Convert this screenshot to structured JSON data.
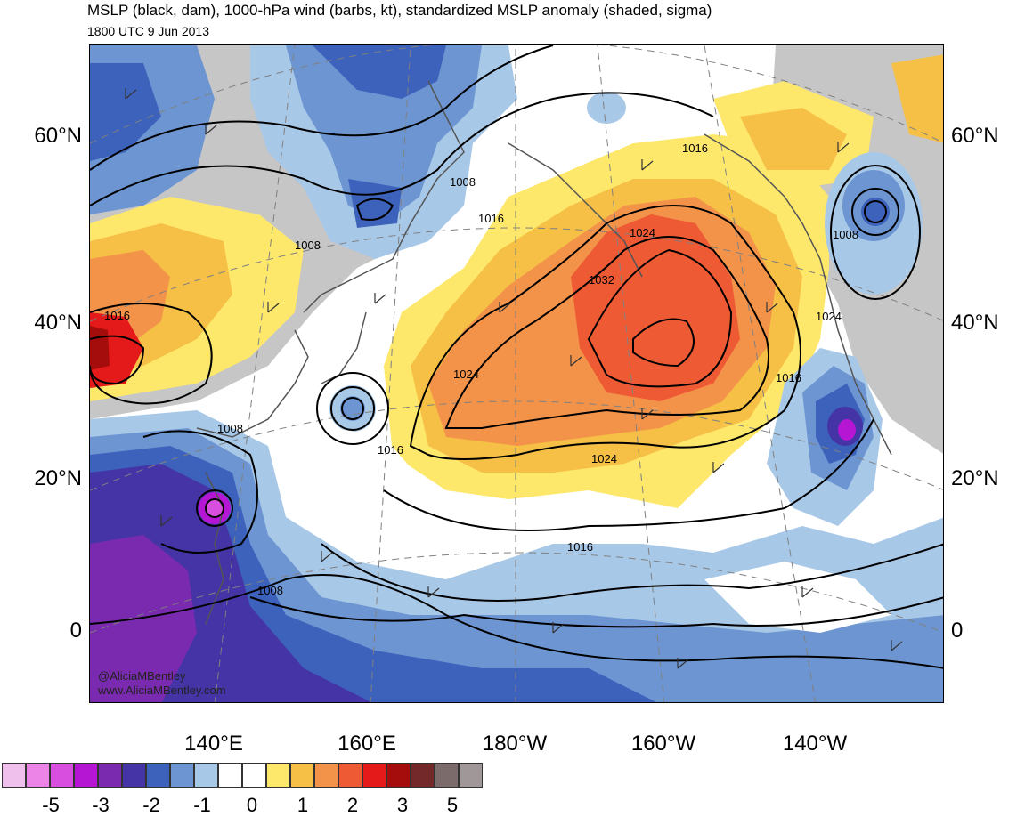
{
  "header": {
    "title": "MSLP (black, dam), 1000-hPa wind (barbs, kt), standardized MSLP anomaly (shaded, sigma)",
    "subtitle": "1800 UTC 9 Jun 2013"
  },
  "axes": {
    "lat_labels": [
      "60°N",
      "40°N",
      "20°N",
      "0"
    ],
    "lon_labels": [
      "140°E",
      "160°E",
      "180°W",
      "160°W",
      "140°W"
    ]
  },
  "isobar_labels": [
    "1016",
    "1008",
    "1016",
    "1008",
    "1024",
    "1008",
    "1032",
    "1016",
    "1024",
    "1024",
    "1016",
    "1008",
    "1024",
    "1016",
    "1016",
    "1008"
  ],
  "credit": {
    "handle": "@AliciaMBentley",
    "website": "www.AliciaMBentley.com"
  },
  "colorbar": {
    "colors": [
      "#f0c0ec",
      "#ec84e8",
      "#d84ede",
      "#b416d4",
      "#7a2aae",
      "#4434a6",
      "#3d62bb",
      "#6c95d2",
      "#a8c8e8",
      "#ffffff",
      "#ffffff",
      "#fde86c",
      "#f5c045",
      "#f3934a",
      "#ee5a34",
      "#e41a1a",
      "#a50d0d",
      "#73282a",
      "#7c6b6b",
      "#a09898"
    ],
    "labels": [
      "-5",
      "-3",
      "-2",
      "-1",
      "0",
      "1",
      "2",
      "3",
      "5"
    ]
  },
  "colors": {
    "land_gray": "#c6c6c6",
    "coast": "#555555",
    "isobar": "#000000",
    "grid": "#808080"
  }
}
